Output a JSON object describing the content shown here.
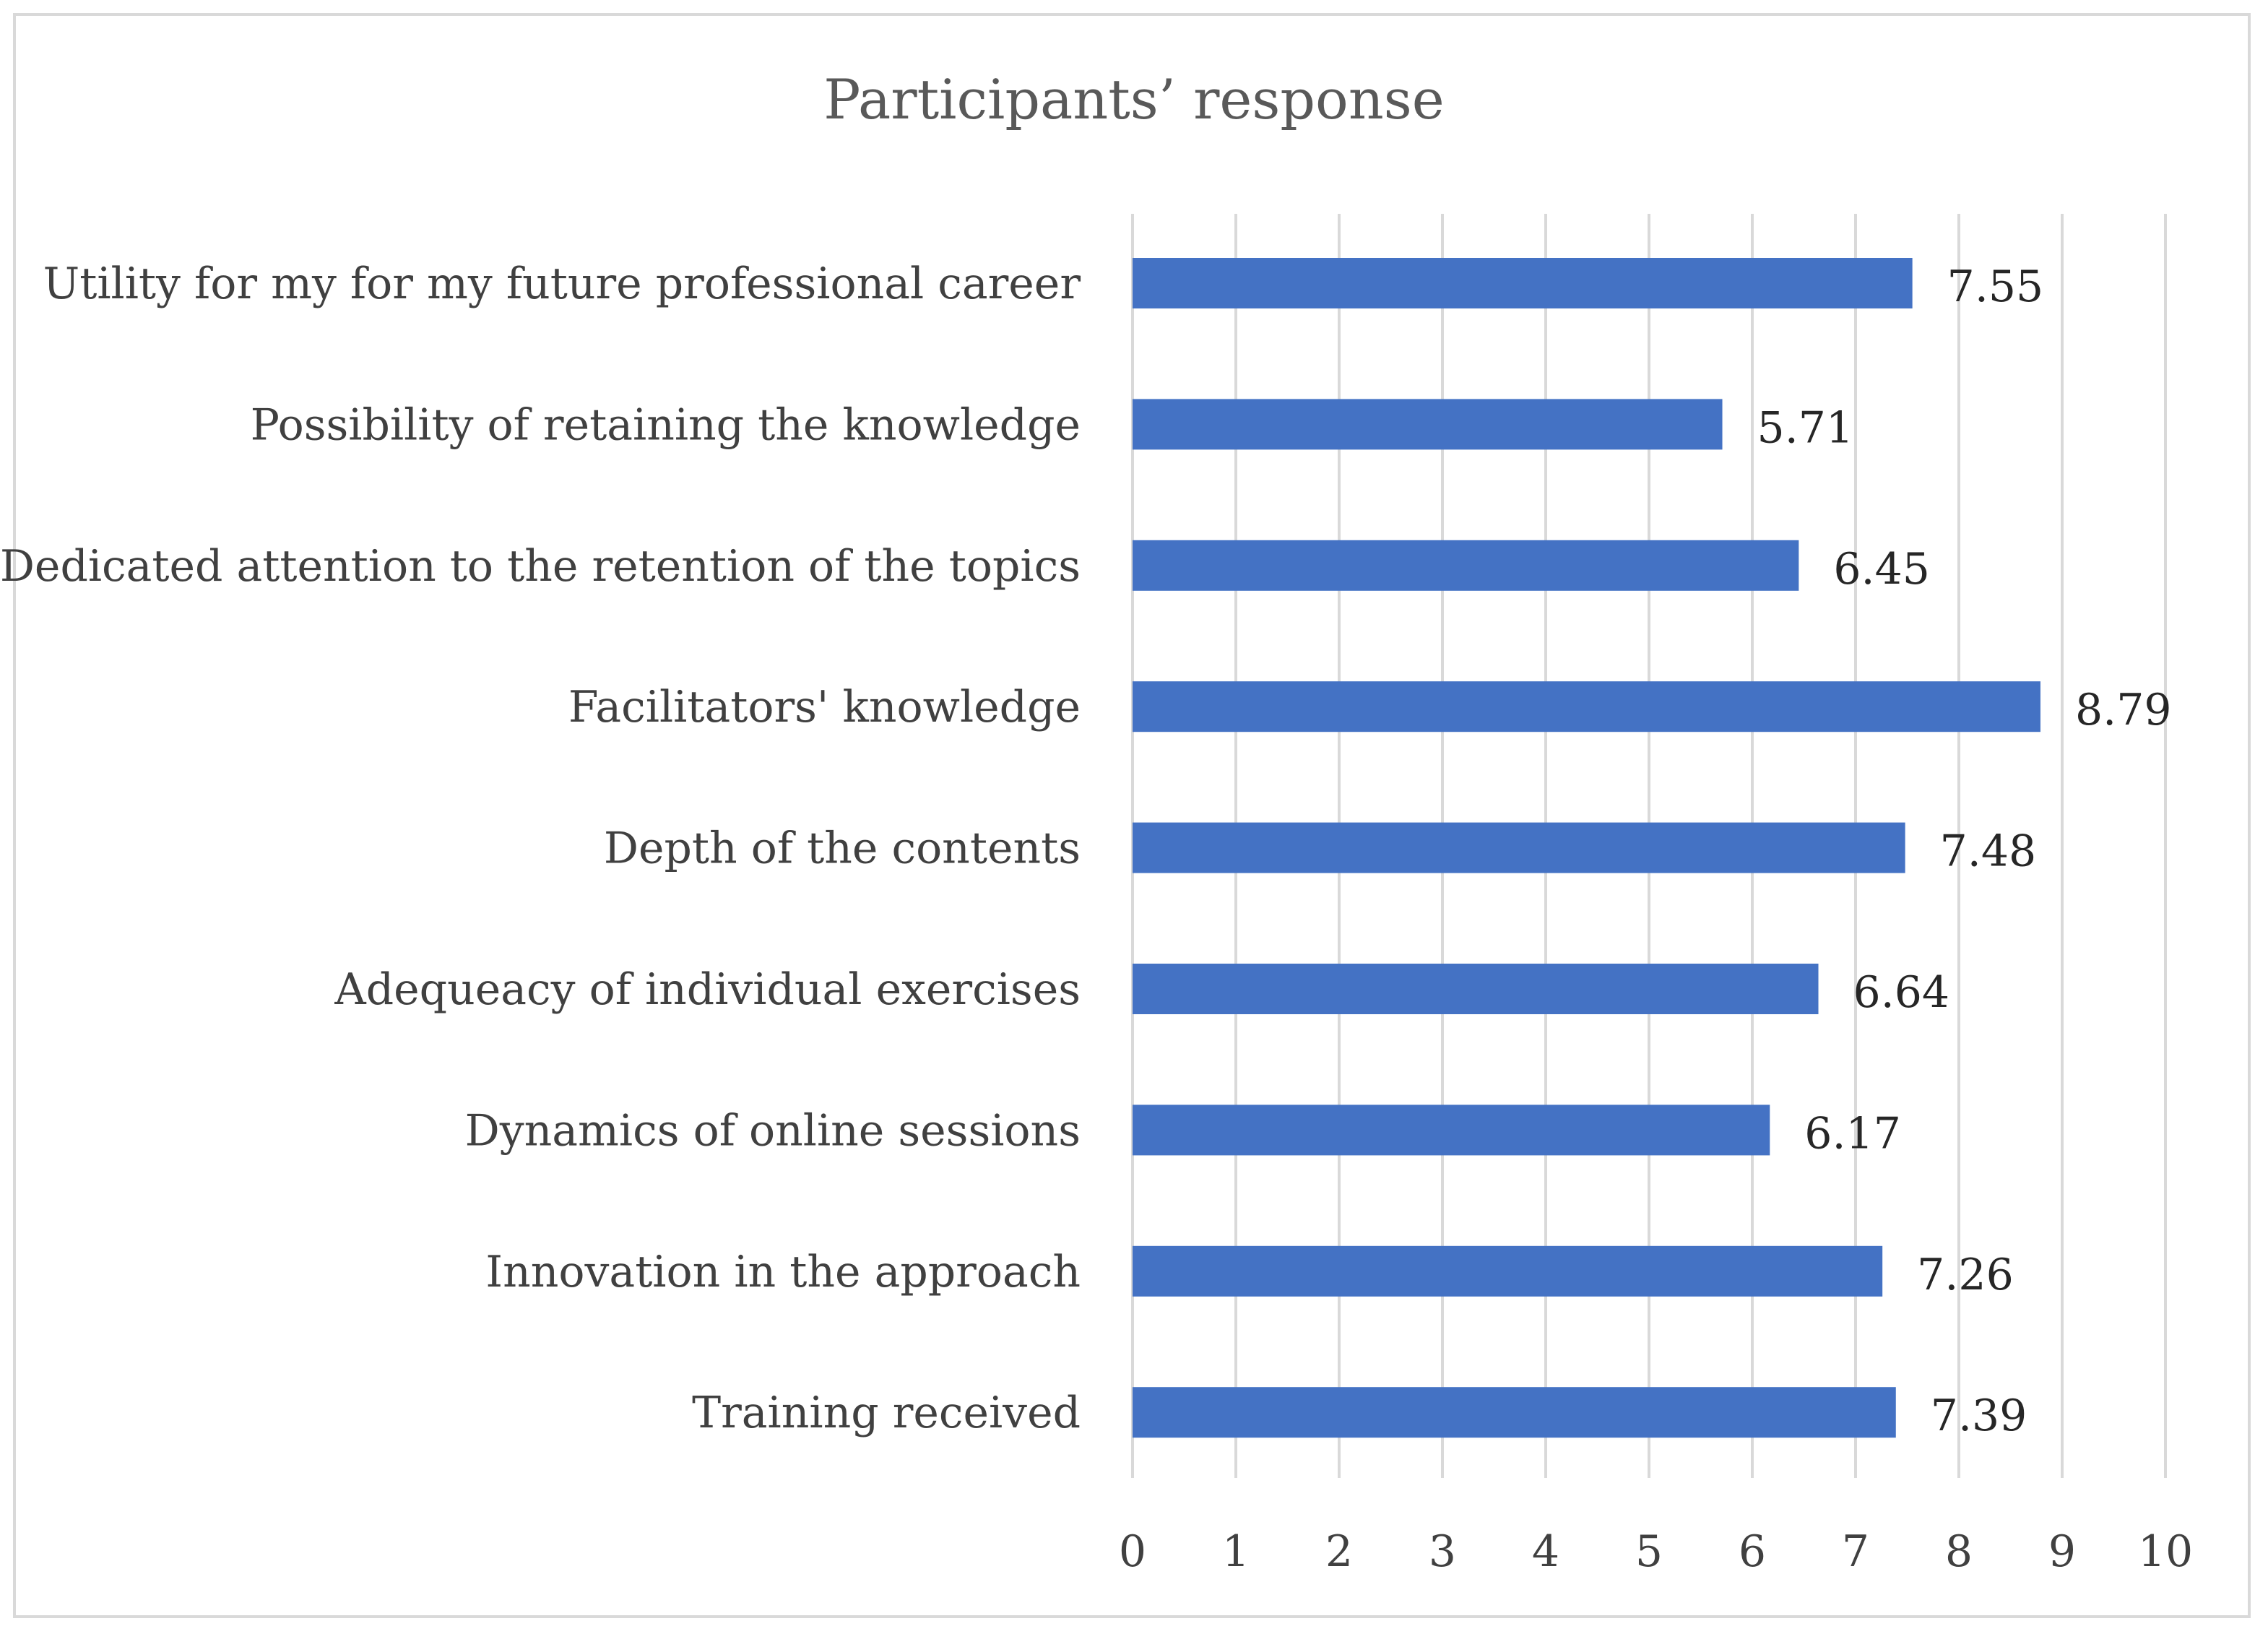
{
  "chart_data": {
    "type": "bar",
    "orientation": "horizontal",
    "title": "Participants’ response",
    "categories": [
      "Utility for my for my future professional career",
      "Possibility of retaining the knowledge",
      "Dedicated attention to the retention of the topics",
      "Facilitators' knowledge",
      "Depth of the contents",
      "Adequeacy of individual exercises",
      "Dynamics of online sessions",
      "Innovation in the approach",
      "Training received"
    ],
    "values": [
      7.55,
      5.71,
      6.45,
      8.79,
      7.48,
      6.64,
      6.17,
      7.26,
      7.39
    ],
    "value_labels": [
      "7.55",
      "5.71",
      "6.45",
      "8.79",
      "7.48",
      "6.64",
      "6.17",
      "7.26",
      "7.39"
    ],
    "xlim": [
      0,
      10
    ],
    "x_ticks": [
      "0",
      "1",
      "2",
      "3",
      "4",
      "5",
      "6",
      "7",
      "8",
      "9",
      "10"
    ],
    "xlabel": "",
    "ylabel": "",
    "grid": "vertical",
    "legend": "none",
    "bar_color": "#4472C4",
    "grid_color": "#d9d9d9"
  }
}
